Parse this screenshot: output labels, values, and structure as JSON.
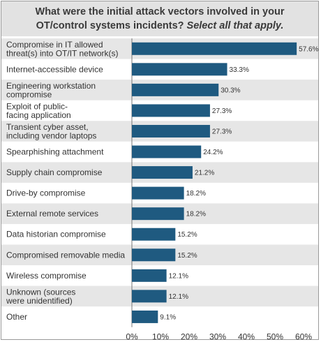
{
  "chart_data": {
    "type": "bar",
    "orientation": "horizontal",
    "title_line1": "What were the initial attack vectors involved in your",
    "title_line2_main": "OT/control systems incidents?",
    "title_line2_italic": "Select all that apply.",
    "categories": [
      [
        "Compromise in IT allowed",
        "threat(s) into OT/IT network(s)"
      ],
      [
        "Internet-accessible device"
      ],
      [
        "Engineering workstation",
        "compromise"
      ],
      [
        "Exploit of public-",
        "facing application"
      ],
      [
        "Transient cyber asset,",
        "including vendor laptops"
      ],
      [
        "Spearphishing attachment"
      ],
      [
        "Supply chain compromise"
      ],
      [
        "Drive-by compromise"
      ],
      [
        "External remote services"
      ],
      [
        "Data historian compromise"
      ],
      [
        "Compromised removable media"
      ],
      [
        "Wireless compromise"
      ],
      [
        "Unknown (sources",
        "were unidentified)"
      ],
      [
        "Other"
      ]
    ],
    "values": [
      57.6,
      33.3,
      30.3,
      27.3,
      27.3,
      24.2,
      21.2,
      18.2,
      18.2,
      15.2,
      15.2,
      12.1,
      12.1,
      9.1
    ],
    "value_labels": [
      "57.6%",
      "33.3%",
      "30.3%",
      "27.3%",
      "27.3%",
      "24.2%",
      "21.2%",
      "18.2%",
      "18.2%",
      "15.2%",
      "15.2%",
      "12.1%",
      "12.1%",
      "9.1%"
    ],
    "xlim": [
      0,
      60
    ],
    "xticks": [
      "0%",
      "10%",
      "20%",
      "30%",
      "40%",
      "50%",
      "60%"
    ],
    "bar_color": "#1f5a80",
    "stripe_color": "#e6e6e6",
    "grid": false
  }
}
